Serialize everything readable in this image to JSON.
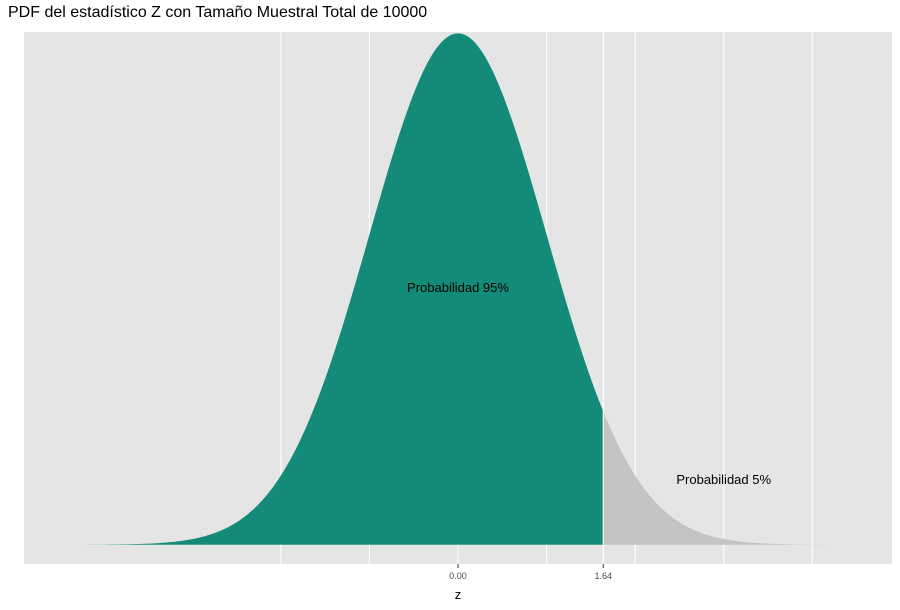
{
  "chart_data": {
    "type": "area",
    "title": "PDF del estadístico Z con Tamaño Muestral Total de 10000",
    "xlabel": "z",
    "ylabel": "",
    "xlim": [
      -4.9,
      4.9
    ],
    "ylim": [
      -0.015,
      0.4
    ],
    "x_tick_values": [
      0,
      1.64
    ],
    "x_tick_labels": [
      "0.00",
      "1.64"
    ],
    "x_gridlines": [
      -2,
      -1,
      0,
      1,
      1.64,
      2,
      3,
      4
    ],
    "grid": true,
    "threshold": 1.64,
    "regions": [
      {
        "from": -4.9,
        "to": 1.64,
        "color": "#138B78"
      },
      {
        "from": 1.64,
        "to": 4.9,
        "color": "#C4C4C4"
      }
    ],
    "annotations": [
      {
        "text": "Probabilidad 95%",
        "x": 0,
        "y": 0.2
      },
      {
        "text": "Probabilidad 5%",
        "x": 3,
        "y": 0.05
      }
    ],
    "colors": {
      "panel_background": "#E5E5E5",
      "grid_major": "#FFFFFF",
      "fill_main": "#138B78",
      "fill_tail": "#C4C4C4"
    }
  }
}
